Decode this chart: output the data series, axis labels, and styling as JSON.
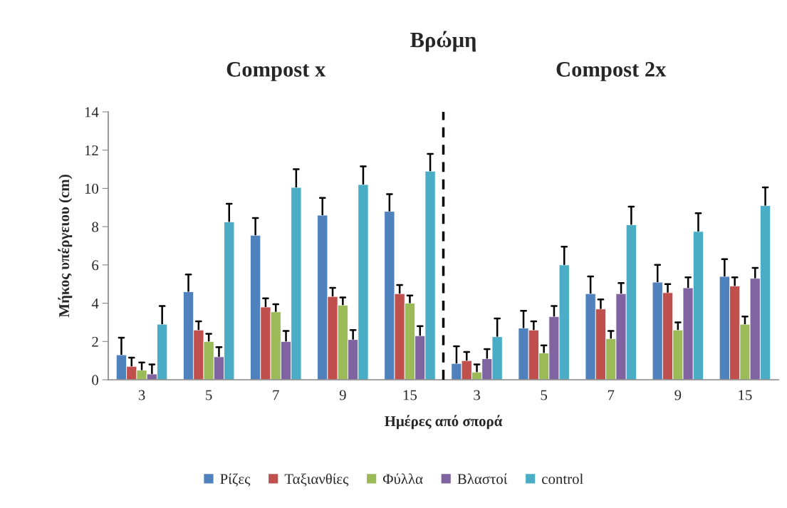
{
  "chart_data": {
    "type": "bar",
    "title": "Βρώμη",
    "xlabel": "Ημέρες από σπορά",
    "ylabel": "Μήκος υπέργειου (cm)",
    "categories": [
      "3",
      "5",
      "7",
      "9",
      "15",
      "3",
      "5",
      "7",
      "9",
      "15"
    ],
    "series": [
      {
        "name": "Ρίζες",
        "color": "#4f81bd",
        "values": [
          1.3,
          4.6,
          7.55,
          8.6,
          8.8,
          0.85,
          2.7,
          4.5,
          5.1,
          5.4
        ],
        "errors": [
          [
            1.3,
            2.2
          ],
          [
            4.6,
            5.5
          ],
          [
            7.55,
            8.45
          ],
          [
            8.6,
            9.5
          ],
          [
            8.8,
            9.7
          ],
          [
            0.85,
            1.75
          ],
          [
            2.7,
            3.6
          ],
          [
            4.5,
            5.4
          ],
          [
            5.1,
            6.0
          ],
          [
            5.4,
            6.3
          ]
        ]
      },
      {
        "name": "Ταξιανθίες",
        "color": "#c0504d",
        "values": [
          0.7,
          2.6,
          3.8,
          4.35,
          4.5,
          1.0,
          2.6,
          3.7,
          4.55,
          4.9
        ],
        "errors": [
          [
            0.7,
            1.15
          ],
          [
            2.6,
            3.05
          ],
          [
            3.8,
            4.25
          ],
          [
            4.35,
            4.8
          ],
          [
            4.5,
            4.95
          ],
          [
            1.0,
            1.45
          ],
          [
            2.6,
            3.05
          ],
          [
            3.7,
            4.2
          ],
          [
            4.55,
            5.0
          ],
          [
            4.9,
            5.35
          ]
        ]
      },
      {
        "name": "Φύλλα",
        "color": "#9bbb59",
        "values": [
          0.5,
          2.0,
          3.55,
          3.9,
          4.0,
          0.4,
          1.4,
          2.15,
          2.6,
          2.9
        ],
        "errors": [
          [
            0.5,
            0.9
          ],
          [
            2.0,
            2.4
          ],
          [
            3.55,
            3.95
          ],
          [
            3.9,
            4.3
          ],
          [
            4.0,
            4.4
          ],
          [
            0.4,
            0.8
          ],
          [
            1.4,
            1.8
          ],
          [
            2.15,
            2.55
          ],
          [
            2.6,
            3.0
          ],
          [
            2.9,
            3.3
          ]
        ]
      },
      {
        "name": "Βλαστοί",
        "color": "#8064a2",
        "values": [
          0.3,
          1.2,
          2.0,
          2.1,
          2.3,
          1.1,
          3.3,
          4.5,
          4.8,
          5.3
        ],
        "errors": [
          [
            0.3,
            0.8
          ],
          [
            1.2,
            1.7
          ],
          [
            2.0,
            2.55
          ],
          [
            2.1,
            2.6
          ],
          [
            2.3,
            2.8
          ],
          [
            1.1,
            1.6
          ],
          [
            3.3,
            3.85
          ],
          [
            4.5,
            5.05
          ],
          [
            4.8,
            5.35
          ],
          [
            5.3,
            5.85
          ]
        ]
      },
      {
        "name": "control",
        "color": "#4bacc6",
        "values": [
          2.9,
          8.25,
          10.05,
          10.2,
          10.9,
          2.25,
          6.0,
          8.1,
          7.75,
          9.1
        ],
        "errors": [
          [
            2.9,
            3.85
          ],
          [
            8.25,
            9.2
          ],
          [
            10.05,
            11.0
          ],
          [
            10.2,
            11.15
          ],
          [
            10.9,
            11.8
          ],
          [
            2.25,
            3.2
          ],
          [
            6.0,
            6.95
          ],
          [
            8.1,
            9.05
          ],
          [
            7.75,
            8.7
          ],
          [
            9.1,
            10.05
          ]
        ]
      }
    ],
    "ylim": [
      0,
      14
    ],
    "yticks": [
      0,
      2,
      4,
      6,
      8,
      10,
      12,
      14
    ],
    "grid": false,
    "legend": "bottom",
    "annotations": [
      "Compost x",
      "Compost 2x"
    ]
  }
}
